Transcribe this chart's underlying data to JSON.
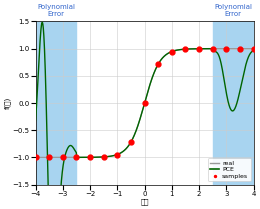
{
  "xlim": [
    -4,
    4
  ],
  "ylim": [
    -1.5,
    1.5
  ],
  "xticks": [
    -4,
    -3,
    -2,
    -1,
    0,
    1,
    2,
    3,
    4
  ],
  "yticks": [
    -1.5,
    -1.0,
    -0.5,
    0.0,
    0.5,
    1.0,
    1.5
  ],
  "shaded_color": "#a8d4f0",
  "shaded_alpha": 1.0,
  "shaded_left_x1": -4,
  "shaded_left_x2": -2.5,
  "shaded_right_x1": 2.5,
  "shaded_right_x2": 4,
  "sample_x": [
    -4,
    -3.5,
    -3,
    -2.5,
    -2,
    -1.5,
    -1,
    -0.5,
    0,
    0.5,
    1,
    1.5,
    2,
    2.5,
    3,
    3.5,
    4
  ],
  "real_color": "#999999",
  "pce_color": "#006400",
  "sample_color": "#ff0000",
  "sample_markersize": 3.5,
  "legend_real": "real",
  "legend_pce": "PCE",
  "legend_samples": "samples",
  "top_label_left": "Polynomial\nError",
  "top_label_right": "Polynomial\nError",
  "top_label_color": "#3366cc",
  "xlabel_str": "めい",
  "ylabel_str": "f(い)"
}
